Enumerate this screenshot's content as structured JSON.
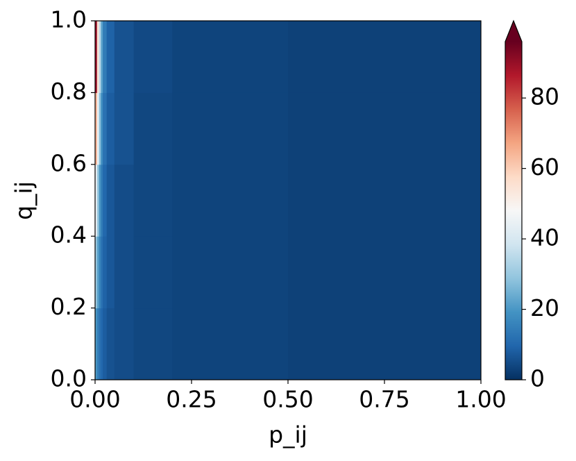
{
  "chart_data": {
    "type": "heatmap",
    "xlabel": "p_ij",
    "ylabel": "q_ij",
    "x_edges": [
      0,
      0.005,
      0.01,
      0.015,
      0.02,
      0.03,
      0.05,
      0.1,
      0.2,
      0.5,
      1.0
    ],
    "y_edges": [
      0,
      0.2,
      0.4,
      0.6,
      0.8,
      1.0
    ],
    "values": [
      [
        20,
        15,
        12,
        10,
        8,
        6,
        5,
        4,
        3.5,
        3
      ],
      [
        30,
        22,
        16,
        12,
        9,
        7,
        5,
        4,
        3.5,
        3
      ],
      [
        45,
        30,
        20,
        14,
        10,
        7,
        5,
        4,
        3.5,
        3
      ],
      [
        65,
        45,
        28,
        18,
        12,
        8,
        6,
        4,
        3.5,
        3
      ],
      [
        90,
        55,
        35,
        22,
        14,
        9,
        6,
        4.5,
        3.5,
        3
      ]
    ],
    "xlim": [
      0,
      1
    ],
    "ylim": [
      0,
      1
    ],
    "xticks": [
      {
        "value": 0,
        "label": "0.00"
      },
      0.25,
      {
        "value": 0.5,
        "label": "0.50"
      },
      0.75,
      {
        "value": 1,
        "label": "1.00"
      }
    ],
    "yticks": [
      {
        "value": 0,
        "label": "0.0"
      },
      0.2,
      0.4,
      0.6,
      0.8,
      {
        "value": 1,
        "label": "1.0"
      }
    ],
    "clim": [
      0,
      96
    ],
    "cticks": [
      0,
      20,
      40,
      60,
      80
    ],
    "colorbar_extend": "max",
    "colormap": [
      "#053061",
      "#2166ac",
      "#4393c3",
      "#92c5de",
      "#d1e5f0",
      "#f7f7f7",
      "#fddbc7",
      "#f4a582",
      "#d6604d",
      "#b2182b",
      "#67001f"
    ]
  }
}
